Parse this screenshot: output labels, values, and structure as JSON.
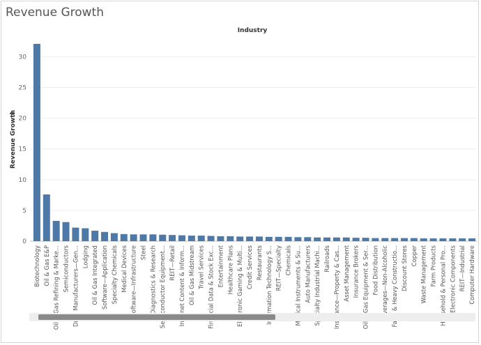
{
  "page": {
    "title": "Revenue Growth"
  },
  "chart_data": {
    "type": "bar",
    "title": "Revenue Growth",
    "column_header": "Industry",
    "ylabel": "Revenue Growth",
    "ylim": [
      0,
      33
    ],
    "yticks": [
      0,
      5,
      10,
      15,
      20,
      25,
      30
    ],
    "grid": true,
    "sort_indicator": "sort-descending-icon",
    "bar_color": "#4e79a7",
    "categories": [
      "Biotechnology",
      "Oil & Gas E&P",
      "Oil & Gas Refining & Marke...",
      "Semiconductors",
      "Drug Manufacturers—Gen...",
      "Lodging",
      "Oil & Gas Integrated",
      "Software—Application",
      "Specialty Chemicals",
      "Medical Devices",
      "Software—Infrastructure",
      "Steel",
      "Diagnostics & Research",
      "Semiconductor Equipment...",
      "REIT—Retail",
      "Internet Content & Inform...",
      "Oil & Gas Midstream",
      "Travel Services",
      "Financial Data & Stock Exc...",
      "Entertainment",
      "Healthcare Plans",
      "Electronic Gaming & Multi...",
      "Credit Services",
      "Restaurants",
      "Information Technology S...",
      "REIT—Specialty",
      "Chemicals",
      "Medical Instruments & Su...",
      "Auto Manufacturers",
      "Specialty Industrial Machi...",
      "Railroads",
      "Insurance—Property & Cas...",
      "Asset Management",
      "Insurance Brokers",
      "Oil & Gas Equipment & Ser...",
      "Food Distribution",
      "Beverages—Non-Alcoholic",
      "Farm & Heavy Constructio...",
      "Discount Stores",
      "Copper",
      "Waste Management",
      "Farm Products",
      "Household & Personal Pro...",
      "Electronic Components",
      "REIT—Industrial",
      "Computer Hardware"
    ],
    "values": [
      32.1,
      7.6,
      3.3,
      3.1,
      2.2,
      2.1,
      1.7,
      1.5,
      1.3,
      1.15,
      1.1,
      1.1,
      1.1,
      1.05,
      1.0,
      0.95,
      0.9,
      0.9,
      0.85,
      0.8,
      0.8,
      0.75,
      0.75,
      0.75,
      0.7,
      0.7,
      0.7,
      0.65,
      0.65,
      0.6,
      0.6,
      0.6,
      0.6,
      0.55,
      0.55,
      0.5,
      0.5,
      0.5,
      0.5,
      0.5,
      0.45,
      0.45,
      0.45,
      0.45,
      0.45,
      0.45
    ]
  }
}
